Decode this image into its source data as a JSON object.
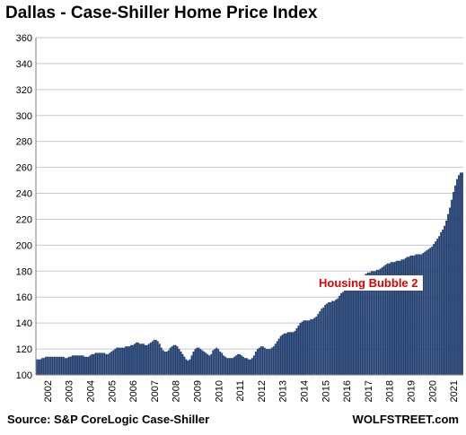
{
  "chart_data": {
    "type": "bar",
    "title": "Dallas - Case-Shiller Home Price Index",
    "source": "Source: S&P CoreLogic Case-Shiller",
    "watermark": "WOLFSTREET.com",
    "annotation": "Housing Bubble 2",
    "ylim": [
      100,
      360
    ],
    "yticks": [
      100,
      120,
      140,
      160,
      180,
      200,
      220,
      240,
      260,
      280,
      300,
      320,
      340,
      360
    ],
    "xlim": [
      2002,
      2022
    ],
    "xticks": [
      "2002",
      "2003",
      "2004",
      "2005",
      "2006",
      "2007",
      "2008",
      "2009",
      "2010",
      "2011",
      "2012",
      "2013",
      "2014",
      "2015",
      "2016",
      "2017",
      "2018",
      "2019",
      "2020",
      "2021"
    ],
    "grid": true,
    "bar_color": "#1f3d6e",
    "grid_color": "#c8c8c8",
    "series": [
      {
        "start": "2002-01",
        "frequency": "monthly",
        "values": [
          112,
          112,
          112,
          113,
          113,
          114,
          114,
          114,
          114,
          114,
          114,
          114,
          114,
          114,
          114,
          114,
          113,
          113,
          114,
          114,
          115,
          115,
          115,
          115,
          115,
          115,
          115,
          114,
          114,
          114,
          115,
          116,
          116,
          117,
          117,
          117,
          117,
          117,
          117,
          116,
          116,
          117,
          118,
          119,
          120,
          121,
          121,
          121,
          121,
          121,
          122,
          122,
          122,
          123,
          123,
          124,
          125,
          125,
          124,
          124,
          124,
          123,
          123,
          124,
          125,
          126,
          127,
          127,
          126,
          124,
          121,
          119,
          118,
          118,
          119,
          121,
          122,
          123,
          123,
          122,
          120,
          118,
          116,
          114,
          112,
          111,
          112,
          115,
          118,
          120,
          121,
          121,
          120,
          119,
          118,
          117,
          116,
          115,
          116,
          119,
          120,
          121,
          120,
          118,
          117,
          115,
          114,
          113,
          113,
          113,
          113,
          114,
          115,
          116,
          116,
          115,
          114,
          113,
          113,
          112,
          112,
          113,
          115,
          118,
          120,
          121,
          122,
          122,
          121,
          120,
          120,
          120,
          121,
          122,
          124,
          126,
          128,
          130,
          131,
          132,
          132,
          133,
          133,
          133,
          133,
          134,
          136,
          138,
          140,
          141,
          142,
          142,
          142,
          142,
          143,
          143,
          144,
          145,
          147,
          149,
          151,
          152,
          154,
          155,
          156,
          156,
          157,
          157,
          158,
          159,
          161,
          163,
          164,
          165,
          166,
          166,
          166,
          166,
          166,
          167,
          168,
          170,
          173,
          175,
          177,
          178,
          179,
          179,
          180,
          180,
          180,
          181,
          181,
          182,
          183,
          184,
          185,
          186,
          186,
          187,
          187,
          187,
          188,
          188,
          188,
          189,
          189,
          190,
          191,
          191,
          192,
          192,
          192,
          193,
          193,
          193,
          193,
          194,
          195,
          196,
          197,
          198,
          199,
          201,
          203,
          205,
          207,
          210,
          212,
          215,
          219,
          224,
          229,
          235,
          241,
          246,
          251,
          254,
          256,
          256
        ]
      }
    ]
  }
}
